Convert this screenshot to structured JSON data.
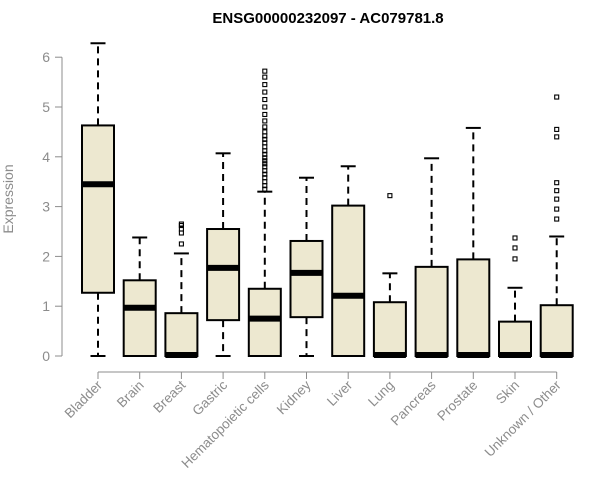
{
  "chart_data": {
    "type": "boxplot",
    "title": "ENSG00000232097 - AC079781.8",
    "xlabel": "",
    "ylabel": "Expression",
    "ylim": [
      0,
      6.3
    ],
    "yticks": [
      0,
      1,
      2,
      3,
      4,
      5,
      6
    ],
    "grid": false,
    "box_fill": "#ede8d0",
    "box_stroke": "#000000",
    "axis_color": "#8c8c8c",
    "categories": [
      "Bladder",
      "Brain",
      "Breast",
      "Gastric",
      "Hematopoietic cells",
      "Kidney",
      "Liver",
      "Lung",
      "Pancreas",
      "Prostate",
      "Skin",
      "Unknown / Other"
    ],
    "boxes": [
      {
        "category": "Bladder",
        "whisker_low": 0,
        "q1": 1.27,
        "median": 3.45,
        "q3": 4.63,
        "whisker_high": 6.28,
        "outliers": []
      },
      {
        "category": "Brain",
        "whisker_low": 0,
        "q1": 0,
        "median": 0.97,
        "q3": 1.52,
        "whisker_high": 2.38,
        "outliers": []
      },
      {
        "category": "Breast",
        "whisker_low": 0,
        "q1": 0,
        "median": 0.02,
        "q3": 0.86,
        "whisker_high": 2.06,
        "outliers": [
          2.25,
          2.47,
          2.55,
          2.62,
          2.65
        ]
      },
      {
        "category": "Gastric",
        "whisker_low": 0,
        "q1": 0.72,
        "median": 1.77,
        "q3": 2.55,
        "whisker_high": 4.07,
        "outliers": []
      },
      {
        "category": "Hematopoietic cells",
        "whisker_low": 0,
        "q1": 0,
        "median": 0.75,
        "q3": 1.35,
        "whisker_high": 3.3,
        "outliers": [
          3.35,
          3.42,
          3.5,
          3.58,
          3.65,
          3.72,
          3.8,
          3.86,
          3.92,
          3.98,
          4.05,
          4.12,
          4.2,
          4.28,
          4.35,
          4.42,
          4.5,
          4.6,
          4.72,
          4.85,
          5.0,
          5.15,
          5.3,
          5.45,
          5.6,
          5.72
        ]
      },
      {
        "category": "Kidney",
        "whisker_low": 0,
        "q1": 0.78,
        "median": 1.67,
        "q3": 2.31,
        "whisker_high": 3.58,
        "outliers": []
      },
      {
        "category": "Liver",
        "whisker_low": 0,
        "q1": 0,
        "median": 1.21,
        "q3": 3.02,
        "whisker_high": 3.81,
        "outliers": []
      },
      {
        "category": "Lung",
        "whisker_low": 0,
        "q1": 0,
        "median": 0.02,
        "q3": 1.08,
        "whisker_high": 1.66,
        "outliers": [
          3.22
        ]
      },
      {
        "category": "Pancreas",
        "whisker_low": 0,
        "q1": 0,
        "median": 0.02,
        "q3": 1.79,
        "whisker_high": 3.97,
        "outliers": []
      },
      {
        "category": "Prostate",
        "whisker_low": 0,
        "q1": 0,
        "median": 0.02,
        "q3": 1.94,
        "whisker_high": 4.58,
        "outliers": []
      },
      {
        "category": "Skin",
        "whisker_low": 0,
        "q1": 0,
        "median": 0.02,
        "q3": 0.69,
        "whisker_high": 1.37,
        "outliers": [
          1.95,
          2.17,
          2.37
        ]
      },
      {
        "category": "Unknown / Other",
        "whisker_low": 0,
        "q1": 0,
        "median": 0.02,
        "q3": 1.02,
        "whisker_high": 2.4,
        "outliers": [
          2.75,
          2.95,
          3.15,
          3.32,
          3.48,
          4.4,
          4.55,
          5.2
        ]
      }
    ]
  }
}
